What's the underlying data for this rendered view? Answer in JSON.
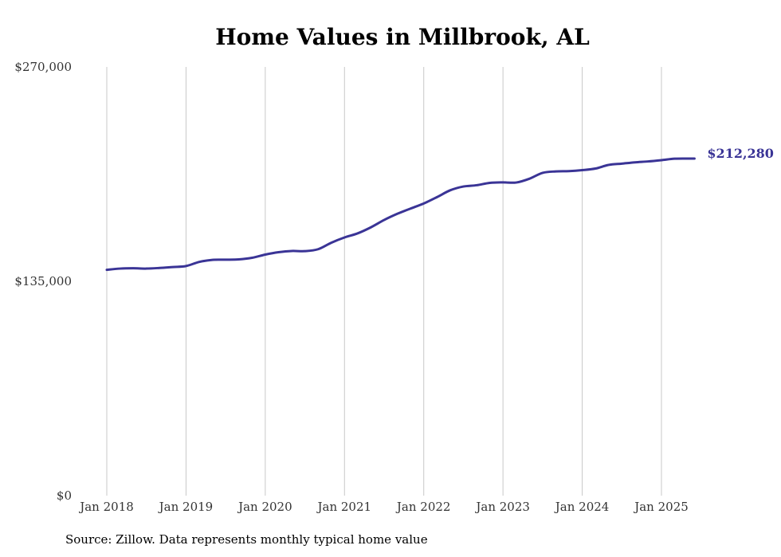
{
  "source_note": "Source: Zillow. Data represents monthly typical home value",
  "colors": {
    "line": "#3a3496",
    "grid": "#c8c8c8",
    "text": "#333333"
  },
  "chart_data": {
    "type": "line",
    "title": "Home Values in Millbrook, AL",
    "xlabel": "",
    "ylabel": "",
    "ylim": [
      0,
      270000
    ],
    "y_ticks": [
      0,
      135000,
      270000
    ],
    "y_tick_labels": [
      "$0",
      "$135,000",
      "$270,000"
    ],
    "x_ticks": [
      "2018-01",
      "2019-01",
      "2020-01",
      "2021-01",
      "2022-01",
      "2023-01",
      "2024-01",
      "2025-01"
    ],
    "x_tick_labels": [
      "Jan 2018",
      "Jan 2019",
      "Jan 2020",
      "Jan 2021",
      "Jan 2022",
      "Jan 2023",
      "Jan 2024",
      "Jan 2025"
    ],
    "grid": "vertical",
    "end_label": "$212,280",
    "series": [
      {
        "x": [
          "2018-01",
          "2018-03",
          "2018-05",
          "2018-07",
          "2018-09",
          "2018-11",
          "2019-01",
          "2019-03",
          "2019-05",
          "2019-07",
          "2019-09",
          "2019-11",
          "2020-01",
          "2020-03",
          "2020-05",
          "2020-07",
          "2020-09",
          "2020-11",
          "2021-01",
          "2021-03",
          "2021-05",
          "2021-07",
          "2021-09",
          "2021-11",
          "2022-01",
          "2022-03",
          "2022-05",
          "2022-07",
          "2022-09",
          "2022-11",
          "2023-01",
          "2023-03",
          "2023-05",
          "2023-07",
          "2023-09",
          "2023-11",
          "2024-01",
          "2024-03",
          "2024-05",
          "2024-07",
          "2024-09",
          "2024-11",
          "2025-01",
          "2025-03",
          "2025-05",
          "2025-06"
        ],
        "values": [
          142200,
          143000,
          143200,
          143000,
          143400,
          144000,
          144600,
          147200,
          148500,
          148600,
          148800,
          149800,
          151800,
          153300,
          154100,
          154000,
          155200,
          159300,
          162600,
          165200,
          169000,
          173600,
          177500,
          180800,
          184000,
          188000,
          192300,
          194700,
          195500,
          197000,
          197300,
          197200,
          199600,
          203300,
          204200,
          204400,
          205000,
          206000,
          208300,
          209100,
          209900,
          210500,
          211300,
          212200,
          212300,
          212280
        ]
      }
    ]
  }
}
